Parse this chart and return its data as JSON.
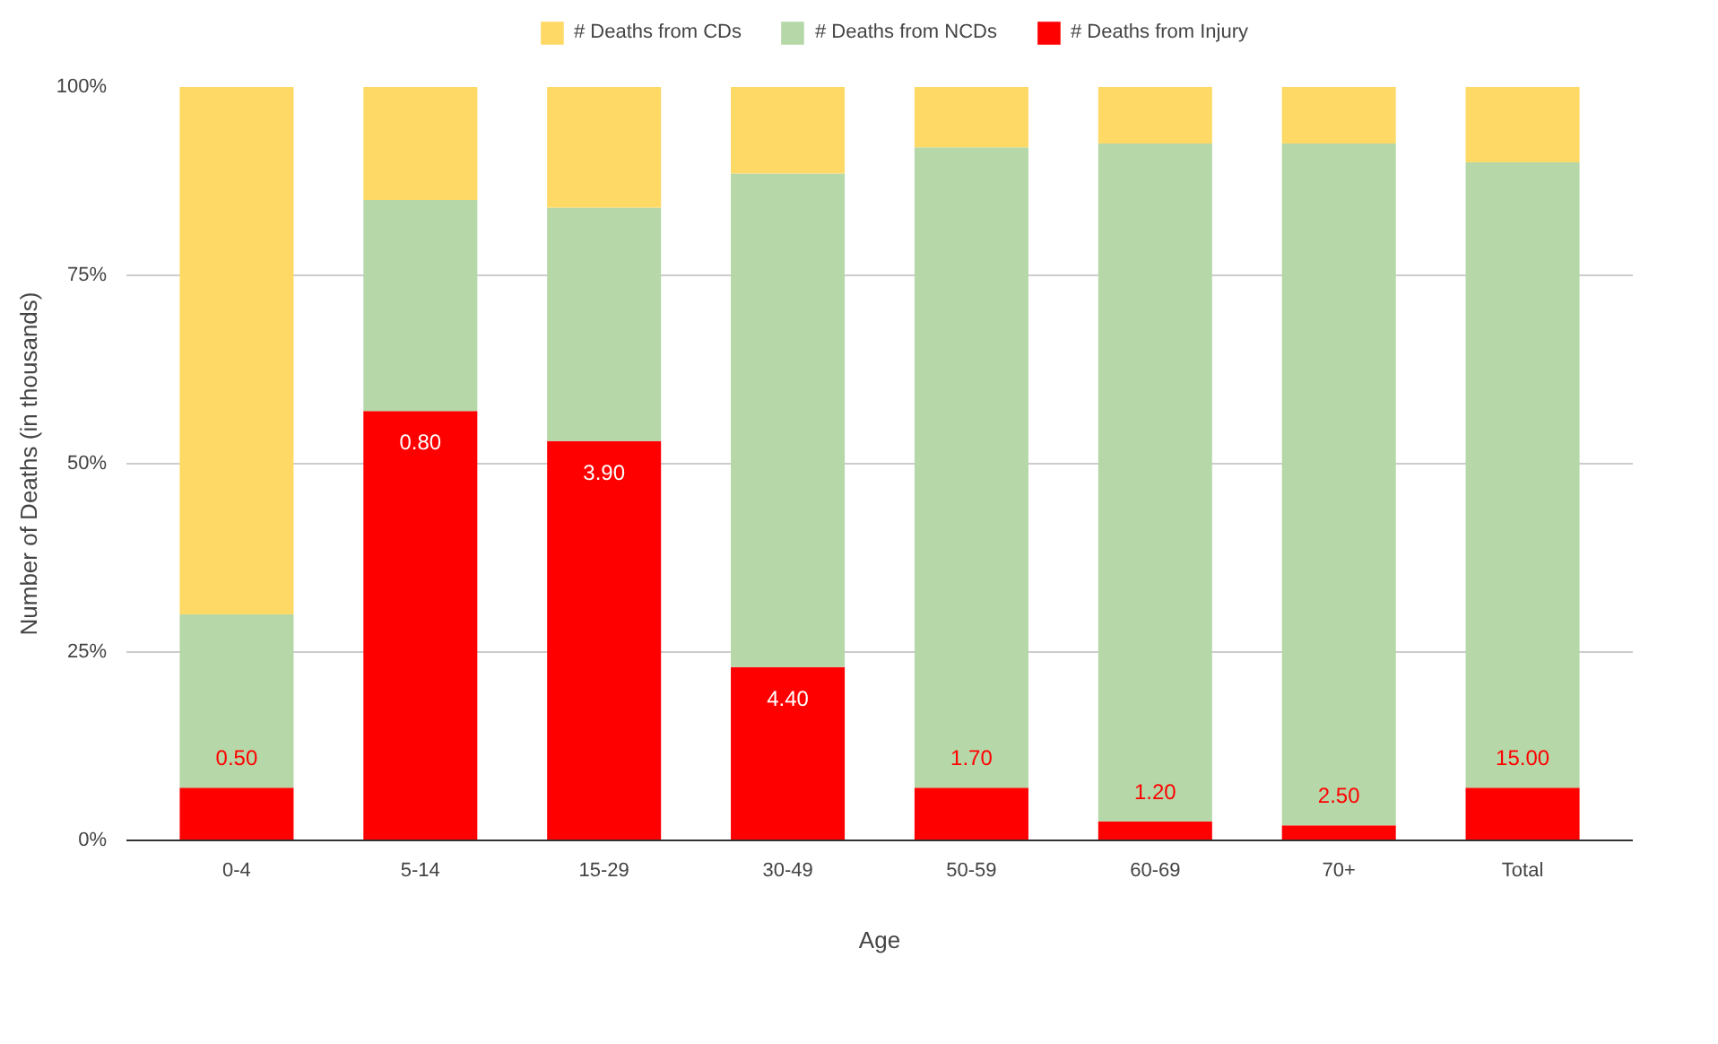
{
  "chart_data": {
    "type": "bar",
    "stacked": true,
    "xlabel": "Age",
    "ylabel": "Number of Deaths (in thousands)",
    "categories": [
      "0-4",
      "5-14",
      "15-29",
      "30-49",
      "50-59",
      "60-69",
      "70+",
      "Total"
    ],
    "series": [
      {
        "name": "# Deaths from Injury",
        "color": "#ff0000",
        "values": [
          7,
          57,
          53,
          23,
          7,
          2.5,
          2,
          7
        ]
      },
      {
        "name": "# Deaths from NCDs",
        "color": "#b6d7a8",
        "values": [
          23,
          28,
          31,
          65.5,
          85,
          90,
          90.5,
          83
        ]
      },
      {
        "name": "# Deaths from CDs",
        "color": "#ffd966",
        "values": [
          70,
          15,
          16,
          11.5,
          8,
          7.5,
          7.5,
          10
        ]
      }
    ],
    "annotations": [
      {
        "text": "0.50",
        "x": "0-4",
        "y": 7
      },
      {
        "text": "0.80",
        "x": "5-14",
        "y": 57
      },
      {
        "text": "3.90",
        "x": "15-29",
        "y": 53
      },
      {
        "text": "4.40",
        "x": "30-49",
        "y": 23
      },
      {
        "text": "1.70",
        "x": "50-59",
        "y": 7
      },
      {
        "text": "1.20",
        "x": "60-69",
        "y": 2.5
      },
      {
        "text": "2.50",
        "x": "70+",
        "y": 2
      },
      {
        "text": "15.00",
        "x": "Total",
        "y": 7
      }
    ],
    "ylim": [
      0,
      100
    ],
    "yticks": [
      {
        "value": 0,
        "label": "0%"
      },
      {
        "value": 25,
        "label": "25%"
      },
      {
        "value": 50,
        "label": "50%"
      },
      {
        "value": 75,
        "label": "75%"
      },
      {
        "value": 100,
        "label": "100%"
      }
    ],
    "grid": "y",
    "legend": "top"
  }
}
